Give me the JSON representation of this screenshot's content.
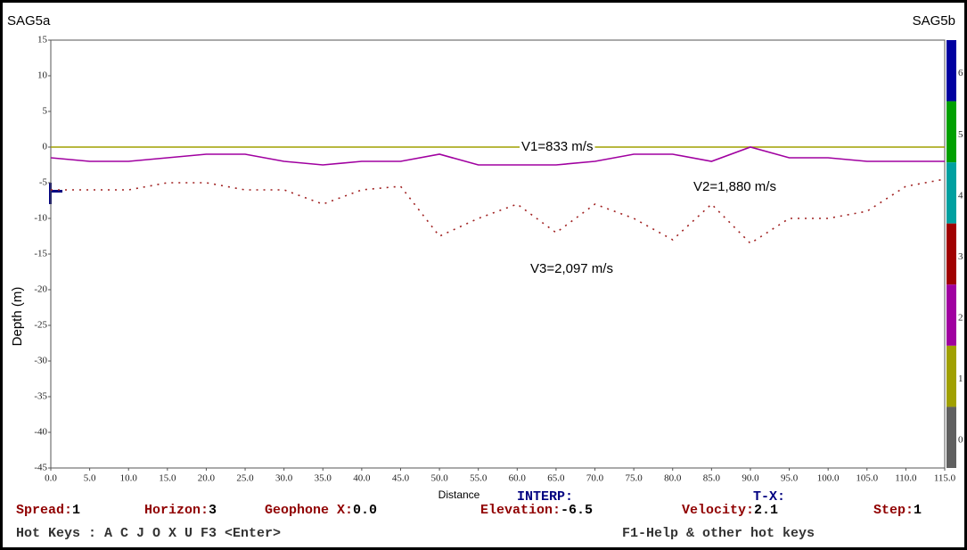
{
  "chart_data": {
    "type": "line",
    "left_label": "SAG5a",
    "right_label": "SAG5b",
    "x_label": "Distance",
    "y_label": "Depth (m)",
    "x": [
      0,
      5,
      10,
      15,
      20,
      25,
      30,
      35,
      40,
      45,
      50,
      55,
      60,
      65,
      70,
      75,
      80,
      85,
      90,
      95,
      100,
      105,
      110,
      115
    ],
    "series": [
      {
        "name": "V1=833 m/s",
        "color": "#a0a000",
        "line_style": "solid",
        "values": [
          0,
          0,
          0,
          0,
          0,
          0,
          0,
          0,
          0,
          0,
          0,
          0,
          0,
          0,
          0,
          0,
          0,
          0,
          0,
          0,
          0,
          0,
          0,
          0
        ]
      },
      {
        "name": "V2=1,880 m/s",
        "color": "#a000a0",
        "line_style": "solid",
        "values": [
          -1.5,
          -2,
          -2,
          -1.5,
          -1,
          -1,
          -2,
          -2.5,
          -2,
          -2,
          -1,
          -2.5,
          -2.5,
          -2.5,
          -2,
          -1,
          -1,
          -2,
          0,
          -1.5,
          -1.5,
          -2,
          -2,
          -2
        ]
      },
      {
        "name": "V3=2,097 m/s",
        "color": "#a02020",
        "line_style": "dotted",
        "values": [
          -6,
          -6,
          -6,
          -5,
          -5,
          -6,
          -6,
          -8,
          -6,
          -5.5,
          -12.5,
          -10,
          -8,
          -12,
          -8,
          -10,
          -13,
          -8,
          -13.5,
          -10,
          -10,
          -9,
          -5.5,
          -4.5
        ]
      }
    ],
    "xlim": [
      0,
      115
    ],
    "ylim": [
      -45,
      15
    ],
    "xticks": [
      {
        "value": 0,
        "label": "0.0"
      },
      {
        "value": 5,
        "label": "5.0"
      },
      {
        "value": 10,
        "label": "10.0"
      },
      {
        "value": 15,
        "label": "15.0"
      },
      {
        "value": 20,
        "label": "20.0"
      },
      {
        "value": 25,
        "label": "25.0"
      },
      {
        "value": 30,
        "label": "30.0"
      },
      {
        "value": 35,
        "label": "35.0"
      },
      {
        "value": 40,
        "label": "40.0"
      },
      {
        "value": 45,
        "label": "45.0"
      },
      {
        "value": 50,
        "label": "50.0"
      },
      {
        "value": 55,
        "label": "55.0"
      },
      {
        "value": 60,
        "label": "60.0"
      },
      {
        "value": 65,
        "label": "65.0"
      },
      {
        "value": 70,
        "label": "70.0"
      },
      {
        "value": 75,
        "label": "75.0"
      },
      {
        "value": 80,
        "label": "80.0"
      },
      {
        "value": 85,
        "label": "85.0"
      },
      {
        "value": 90,
        "label": "90.0"
      },
      {
        "value": 95,
        "label": "95.0"
      },
      {
        "value": 100,
        "label": "100.0"
      },
      {
        "value": 105,
        "label": "105.0"
      },
      {
        "value": 110,
        "label": "110.0"
      },
      {
        "value": 115,
        "label": "115.0"
      }
    ],
    "yticks": [
      15,
      10,
      5,
      0,
      -5,
      -10,
      -15,
      -20,
      -25,
      -30,
      -35,
      -40,
      -45
    ],
    "colorbar": {
      "labels": [
        6,
        5,
        4,
        3,
        2,
        1,
        0
      ],
      "colors": [
        "#0000a0",
        "#00a000",
        "#00a0a0",
        "#a00000",
        "#a000a0",
        "#a0a000",
        "#606060"
      ]
    }
  },
  "status": {
    "interp": "INTERP:",
    "tx": "T-X:",
    "fields": [
      {
        "label": "Spread:",
        "value": "1"
      },
      {
        "label": "Horizon:",
        "value": "3"
      },
      {
        "label": "Geophone X:",
        "value": "0.0"
      },
      {
        "label": "Elevation:",
        "value": "-6.5"
      },
      {
        "label": "Velocity:",
        "value": "2.1"
      },
      {
        "label": "Step:",
        "value": "1"
      }
    ],
    "hot_keys": "Hot Keys : A C J O X U F3 <Enter>",
    "help": "F1-Help & other hot keys"
  }
}
